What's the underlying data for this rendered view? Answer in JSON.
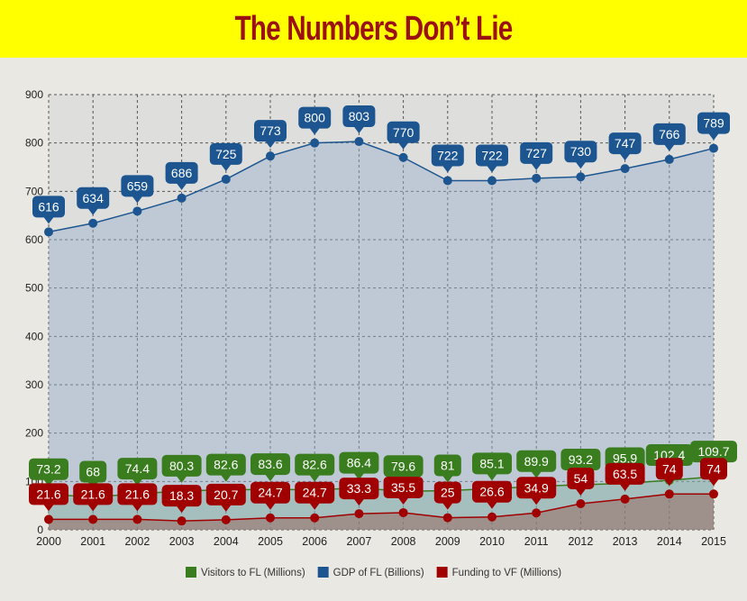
{
  "header": {
    "title": "The Numbers Don’t Lie"
  },
  "chart_data": {
    "type": "area",
    "title": "",
    "xlabel": "",
    "ylabel": "",
    "categories": [
      "2000",
      "2001",
      "2002",
      "2003",
      "2004",
      "2005",
      "2006",
      "2007",
      "2008",
      "2009",
      "2010",
      "2011",
      "2012",
      "2013",
      "2014",
      "2015"
    ],
    "ylim": [
      0,
      900
    ],
    "yticks": [
      0,
      100,
      200,
      300,
      400,
      500,
      600,
      700,
      800,
      900
    ],
    "grid": true,
    "legend_placement": "bottom",
    "series": [
      {
        "name": "Visitors to FL (Millions)",
        "color": "#3a7d1f",
        "values": [
          73.2,
          68,
          74.4,
          80.3,
          82.6,
          83.6,
          82.6,
          86.4,
          79.6,
          81,
          85.1,
          89.9,
          93.2,
          95.9,
          102.4,
          109.7
        ]
      },
      {
        "name": "GDP of FL (Billions)",
        "color": "#1c5590",
        "values": [
          616,
          634,
          659,
          686,
          725,
          773,
          800,
          803,
          770,
          722,
          722,
          727,
          730,
          747,
          766,
          789
        ]
      },
      {
        "name": "Funding to VF (Millions)",
        "color": "#a00000",
        "values": [
          21.6,
          21.6,
          21.6,
          18.3,
          20.7,
          24.7,
          24.7,
          33.3,
          35.5,
          25,
          26.6,
          34.9,
          54,
          63.5,
          74,
          74
        ]
      }
    ]
  }
}
